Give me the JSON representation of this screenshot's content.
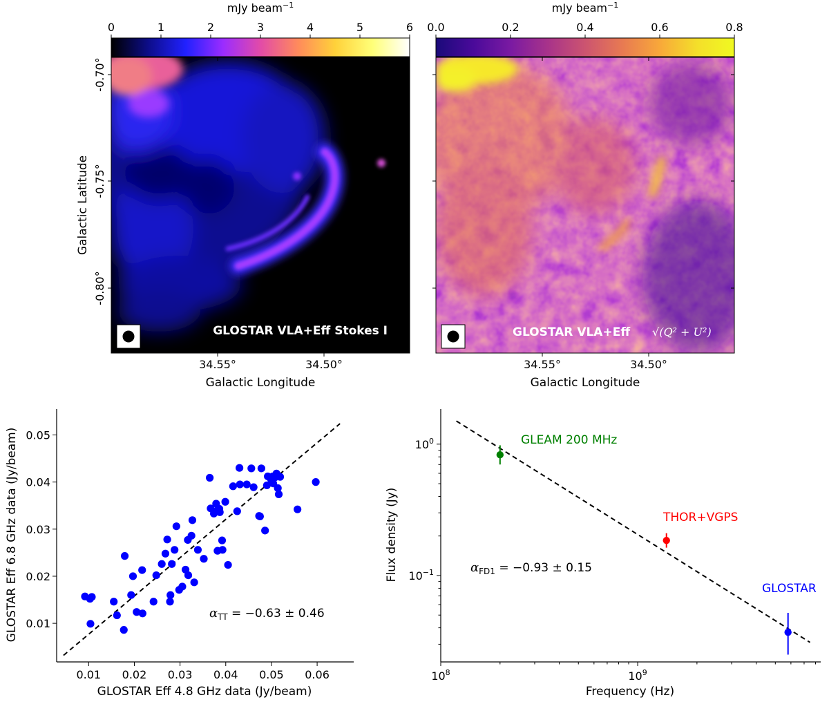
{
  "chart_data": [
    {
      "type": "heatmap",
      "panel": "top-left",
      "colorbar": {
        "label": "mJy beam",
        "label_exponent": "−1",
        "ticks": [
          "0",
          "1",
          "2",
          "3",
          "4",
          "5",
          "6"
        ],
        "range": [
          0,
          6
        ],
        "colormap": "gnuplot2",
        "stops": [
          "#000000",
          "#0d0d8a",
          "#2121ff",
          "#9b2cff",
          "#e24ba8",
          "#ff8a5c",
          "#ffd13a",
          "#ffff78",
          "#ffffff"
        ]
      },
      "xlabel": "Galactic Longitude",
      "ylabel": "Galactic Latitude",
      "x_ticks": [
        "34.55°",
        "34.50°"
      ],
      "y_ticks": [
        "-0.70°",
        "-0.75°",
        "-0.80°"
      ],
      "annotation": "GLOSTAR VLA+Eff Stokes I"
    },
    {
      "type": "heatmap",
      "panel": "top-right",
      "colorbar": {
        "label": "mJy beam",
        "label_exponent": "−1",
        "ticks": [
          "0.0",
          "0.2",
          "0.4",
          "0.6",
          "0.8"
        ],
        "range": [
          0.0,
          0.8
        ],
        "colormap": "plasma",
        "stops": [
          "#1a0a7a",
          "#4a0a9a",
          "#7a1aa2",
          "#a8338a",
          "#cc5470",
          "#e87a52",
          "#f8a83a",
          "#f4df2a",
          "#f0f921"
        ]
      },
      "xlabel": "Galactic Longitude",
      "x_ticks": [
        "34.55°",
        "34.50°"
      ],
      "annotation": "GLOSTAR VLA+Eff",
      "annotation_math": "√(Q² + U²)"
    },
    {
      "type": "scatter",
      "panel": "bottom-left",
      "xlabel": "GLOSTAR Eff 4.8 GHz data (Jy/beam)",
      "ylabel": "GLOSTAR Eff 6.8 GHz data (Jy/beam)",
      "xlim": [
        0.003,
        0.068
      ],
      "ylim": [
        0.0018,
        0.0555
      ],
      "x_ticks": [
        0.01,
        0.02,
        0.03,
        0.04,
        0.05,
        0.06
      ],
      "y_ticks": [
        0.01,
        0.02,
        0.03,
        0.04,
        0.05
      ],
      "x_tick_labels": [
        "0.01",
        "0.02",
        "0.03",
        "0.04",
        "0.05",
        "0.06"
      ],
      "y_tick_labels": [
        "0.01",
        "0.02",
        "0.03",
        "0.04",
        "0.05"
      ],
      "point_color": "#0000ff",
      "fit_line": {
        "x": [
          0.0045,
          0.065
        ],
        "y": [
          0.0032,
          0.0524
        ],
        "style": "dashed",
        "color": "#000000"
      },
      "annotation": {
        "symbol": "α",
        "subscript": "TT",
        "text": " = −0.63 ± 0.46"
      },
      "points": [
        [
          0.0092,
          0.0157
        ],
        [
          0.0103,
          0.0152
        ],
        [
          0.0107,
          0.0156
        ],
        [
          0.0104,
          0.0099
        ],
        [
          0.0155,
          0.0146
        ],
        [
          0.0162,
          0.0117
        ],
        [
          0.0177,
          0.0086
        ],
        [
          0.0179,
          0.0243
        ],
        [
          0.0193,
          0.016
        ],
        [
          0.0197,
          0.02
        ],
        [
          0.0205,
          0.0124
        ],
        [
          0.0218,
          0.0121
        ],
        [
          0.0217,
          0.0213
        ],
        [
          0.0242,
          0.0146
        ],
        [
          0.0248,
          0.0202
        ],
        [
          0.026,
          0.0226
        ],
        [
          0.0268,
          0.0248
        ],
        [
          0.0272,
          0.0278
        ],
        [
          0.0278,
          0.0146
        ],
        [
          0.0279,
          0.016
        ],
        [
          0.0282,
          0.0226
        ],
        [
          0.0292,
          0.0306
        ],
        [
          0.0288,
          0.0256
        ],
        [
          0.0298,
          0.0171
        ],
        [
          0.0305,
          0.0178
        ],
        [
          0.0312,
          0.0214
        ],
        [
          0.0317,
          0.0277
        ],
        [
          0.0318,
          0.0202
        ],
        [
          0.0325,
          0.0286
        ],
        [
          0.0327,
          0.0319
        ],
        [
          0.0331,
          0.0187
        ],
        [
          0.0339,
          0.0256
        ],
        [
          0.0352,
          0.0237
        ],
        [
          0.0365,
          0.0409
        ],
        [
          0.0367,
          0.0344
        ],
        [
          0.0374,
          0.0333
        ],
        [
          0.0379,
          0.0354
        ],
        [
          0.038,
          0.0338
        ],
        [
          0.0386,
          0.0343
        ],
        [
          0.0382,
          0.0254
        ],
        [
          0.0387,
          0.0336
        ],
        [
          0.0392,
          0.0276
        ],
        [
          0.0393,
          0.0256
        ],
        [
          0.0399,
          0.0358
        ],
        [
          0.0405,
          0.0224
        ],
        [
          0.0416,
          0.0391
        ],
        [
          0.0425,
          0.0338
        ],
        [
          0.043,
          0.043
        ],
        [
          0.0431,
          0.0395
        ],
        [
          0.0446,
          0.0395
        ],
        [
          0.0456,
          0.0429
        ],
        [
          0.0461,
          0.0389
        ],
        [
          0.0473,
          0.0328
        ],
        [
          0.0475,
          0.0327
        ],
        [
          0.0478,
          0.0429
        ],
        [
          0.0486,
          0.0297
        ],
        [
          0.049,
          0.0393
        ],
        [
          0.0499,
          0.0406
        ],
        [
          0.0508,
          0.041
        ],
        [
          0.0511,
          0.0418
        ],
        [
          0.0514,
          0.0387
        ],
        [
          0.0516,
          0.0374
        ],
        [
          0.0519,
          0.0411
        ],
        [
          0.0557,
          0.0342
        ],
        [
          0.0597,
          0.04
        ],
        [
          0.0504,
          0.0397
        ],
        [
          0.0492,
          0.0412
        ],
        [
          0.0503,
          0.0412
        ],
        [
          0.0384,
          0.0343
        ]
      ]
    },
    {
      "type": "scatter",
      "panel": "bottom-right",
      "xscale": "log",
      "yscale": "log",
      "xlabel": "Frequency (Hz)",
      "ylabel": "Flux density (Jy)",
      "xlim": [
        100000000,
        8500000000
      ],
      "ylim": [
        0.022,
        1.85
      ],
      "x_tick_labels": [
        {
          "base": "10",
          "exp": "8",
          "value": 100000000
        },
        {
          "base": "10",
          "exp": "9",
          "value": 1000000000
        }
      ],
      "y_tick_labels": [
        {
          "base": "10",
          "exp": "0",
          "value": 1
        },
        {
          "base": "10",
          "exp": "−1",
          "value": 0.1
        }
      ],
      "fit_line": {
        "x": [
          120000000,
          7500000000
        ],
        "y": [
          1.5,
          0.031
        ],
        "style": "dashed",
        "color": "#000000"
      },
      "points": [
        {
          "label": "GLEAM 200 MHz",
          "x": 200000000,
          "y": 0.83,
          "err": [
            0.7,
            0.98
          ],
          "color": "#008000"
        },
        {
          "label": "THOR+VGPS",
          "x": 1400000000,
          "y": 0.185,
          "err": [
            0.163,
            0.21
          ],
          "color": "#ff0000"
        },
        {
          "label": "GLOSTAR",
          "x": 5800000000,
          "y": 0.037,
          "err": [
            0.025,
            0.052
          ],
          "color": "#0000ff"
        }
      ],
      "annotation": {
        "symbol": "α",
        "subscript": "FD1",
        "text": " = −0.93 ± 0.15"
      }
    }
  ]
}
